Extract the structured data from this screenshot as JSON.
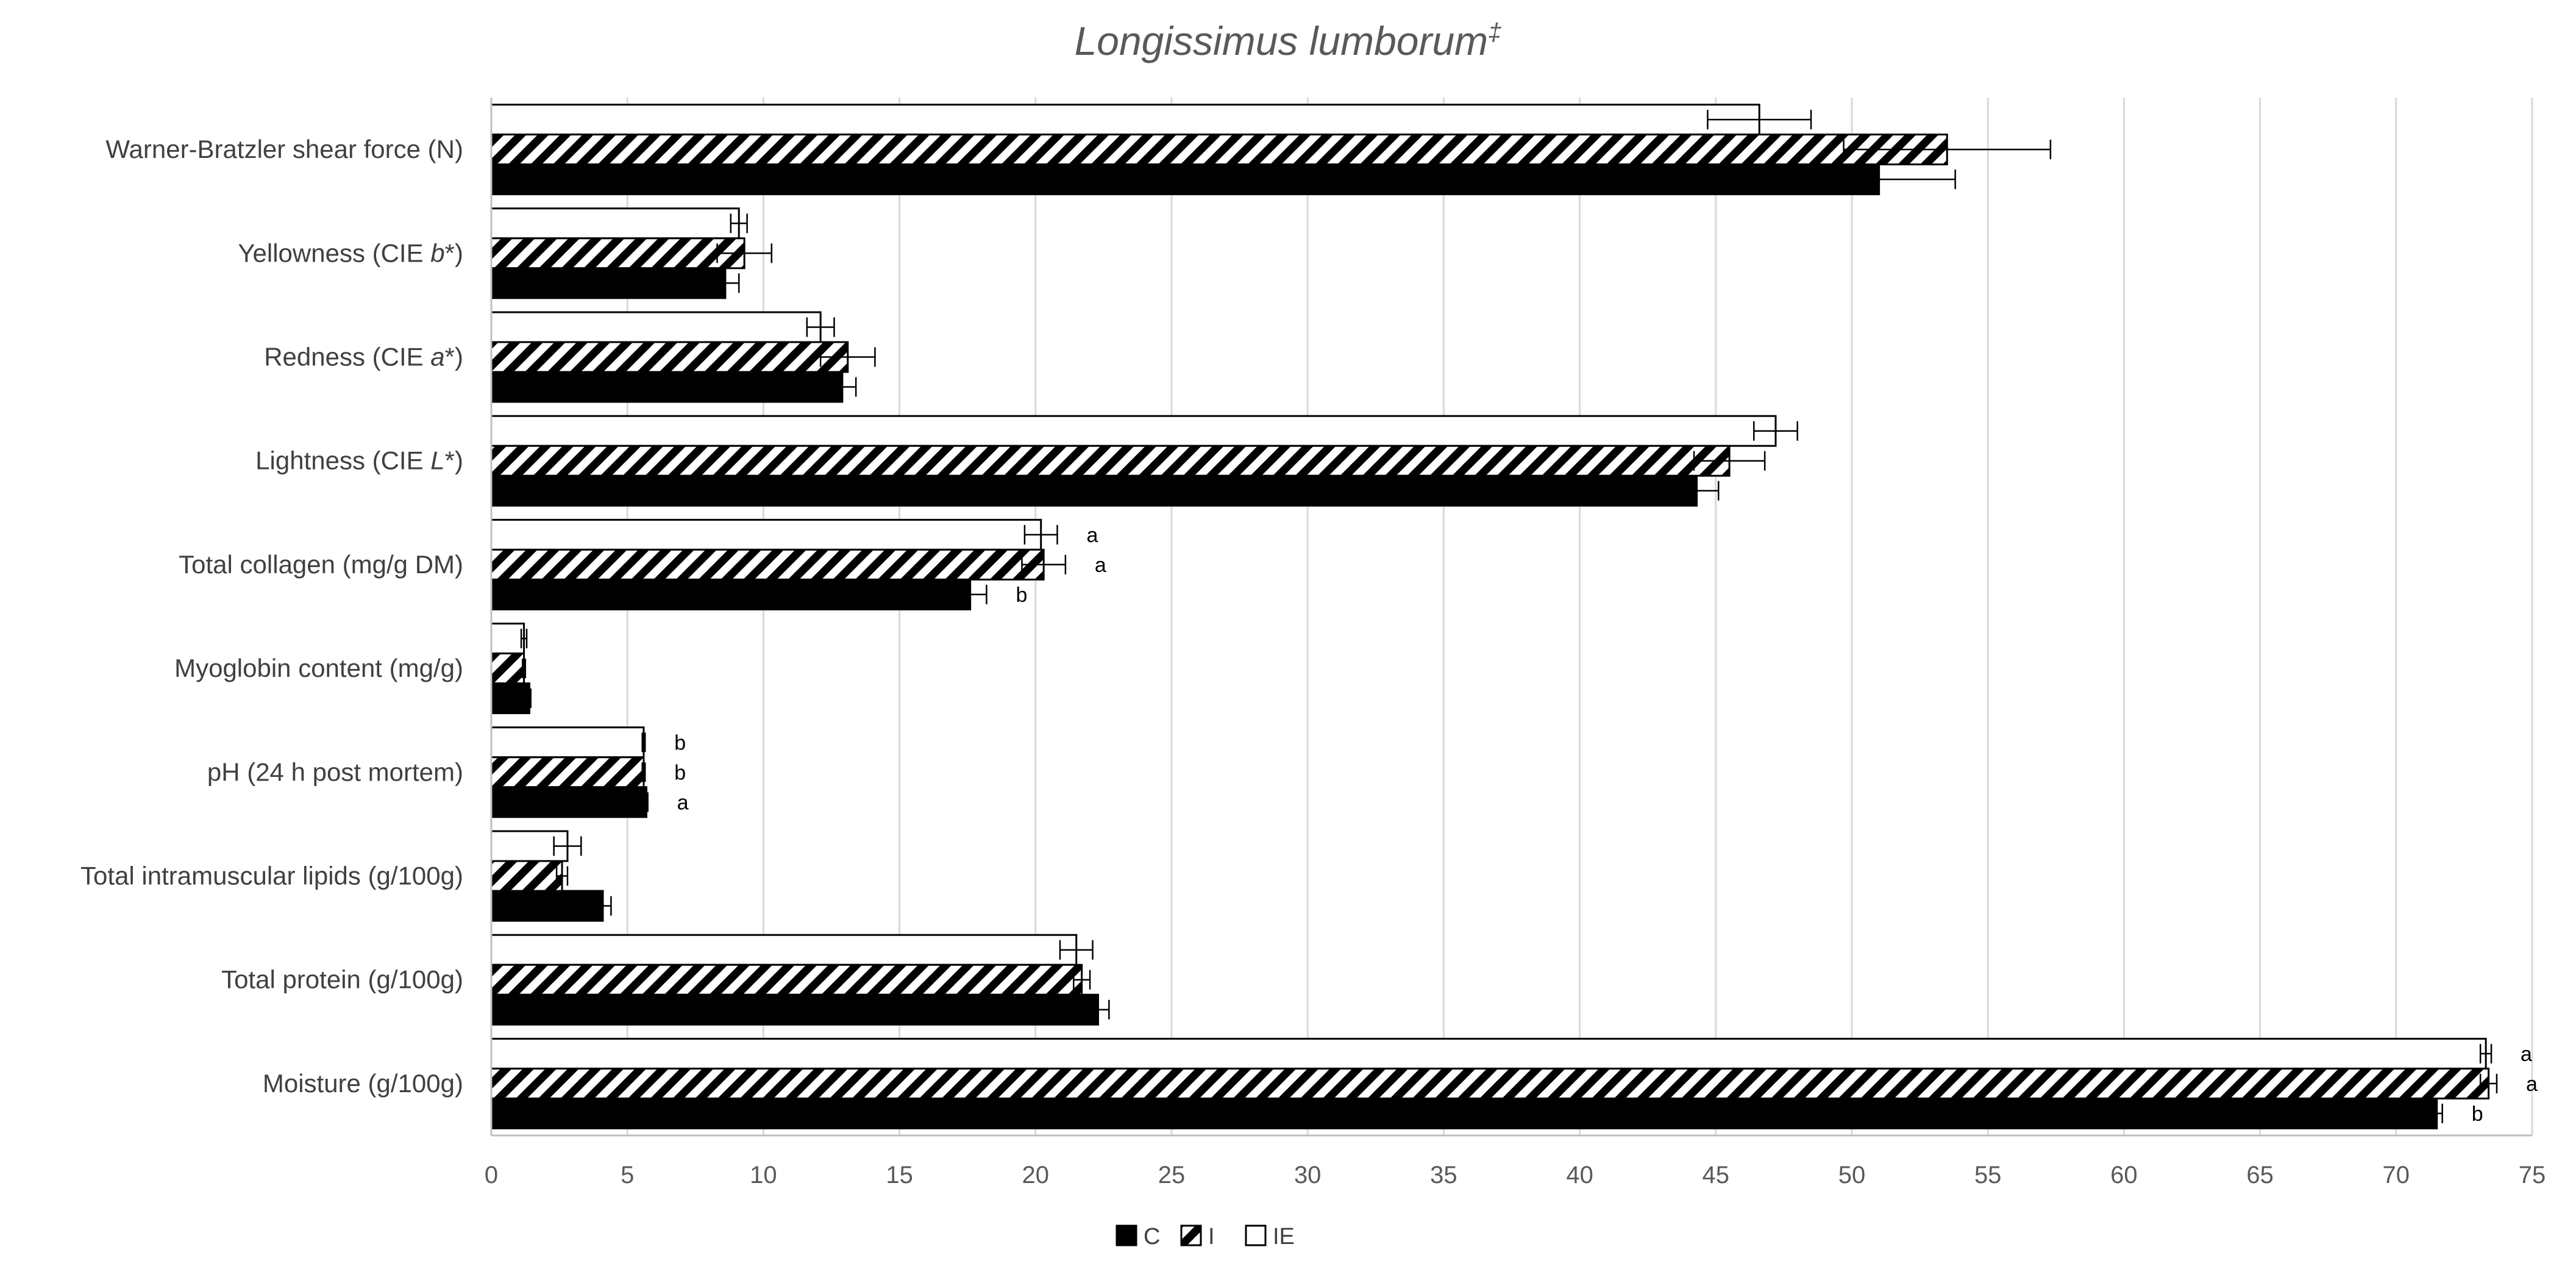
{
  "chart_data": {
    "type": "bar",
    "orientation": "horizontal",
    "title": "Longissimus lumborum",
    "title_mark": "‡",
    "xlabel": "",
    "ylabel": "",
    "xlim": [
      0,
      75
    ],
    "xticks": [
      0,
      5,
      10,
      15,
      20,
      25,
      30,
      35,
      40,
      45,
      50,
      55,
      60,
      65,
      70,
      75
    ],
    "grid": "vertical",
    "legend_position": "bottom-center",
    "categories": [
      {
        "pre": "Warner-Bratzler shear force (N)",
        "it": "",
        "post": ""
      },
      {
        "pre": "Yellowness (CIE ",
        "it": "b",
        "post": "*)"
      },
      {
        "pre": "Redness (CIE ",
        "it": "a",
        "post": "*)"
      },
      {
        "pre": "Lightness (CIE ",
        "it": "L",
        "post": "*)"
      },
      {
        "pre": "Total collagen (mg/g DM)",
        "it": "",
        "post": ""
      },
      {
        "pre": "Myoglobin content (mg/g)",
        "it": "",
        "post": ""
      },
      {
        "pre": "pH (24 h post mortem)",
        "it": "",
        "post": ""
      },
      {
        "pre": "Total intramuscular lipids (g/100g)",
        "it": "",
        "post": ""
      },
      {
        "pre": "Total protein (g/100g)",
        "it": "",
        "post": ""
      },
      {
        "pre": "Moisture (g/100g)",
        "it": "",
        "post": ""
      }
    ],
    "series": [
      {
        "name": "IE",
        "pattern": "white",
        "values": [
          46.6,
          9.1,
          12.1,
          47.2,
          20.2,
          1.2,
          5.6,
          2.8,
          21.5,
          73.3
        ],
        "errors": [
          1.9,
          0.3,
          0.5,
          0.8,
          0.6,
          0.1,
          0.05,
          0.5,
          0.6,
          0.2
        ],
        "sig": [
          "",
          "",
          "",
          "",
          "a",
          "",
          "b",
          "",
          "",
          "a"
        ]
      },
      {
        "name": "I",
        "pattern": "hatched",
        "values": [
          53.5,
          9.3,
          13.1,
          45.5,
          20.3,
          1.2,
          5.6,
          2.6,
          21.7,
          73.4
        ],
        "errors": [
          3.8,
          1.0,
          1.0,
          1.3,
          0.8,
          0.05,
          0.05,
          0.2,
          0.3,
          0.3
        ],
        "sig": [
          "",
          "",
          "",
          "",
          "a",
          "",
          "b",
          "",
          "",
          "a"
        ]
      },
      {
        "name": "C",
        "pattern": "black",
        "values": [
          51.0,
          8.6,
          12.9,
          44.3,
          17.6,
          1.4,
          5.7,
          4.1,
          22.3,
          71.5
        ],
        "errors": [
          2.8,
          0.5,
          0.5,
          0.8,
          0.6,
          0.05,
          0.05,
          0.3,
          0.4,
          0.2
        ],
        "sig": [
          "",
          "",
          "",
          "",
          "b",
          "",
          "a",
          "",
          "",
          "b"
        ]
      }
    ],
    "legend": [
      {
        "name": "C",
        "pattern": "black"
      },
      {
        "name": "I",
        "pattern": "hatched"
      },
      {
        "name": "IE",
        "pattern": "white"
      }
    ],
    "colors": {
      "bar_fill": "#000000",
      "bar_stroke": "#000000",
      "grid": "#d9d9d9",
      "axis": "#bfbfbf",
      "text": "#404040"
    }
  }
}
